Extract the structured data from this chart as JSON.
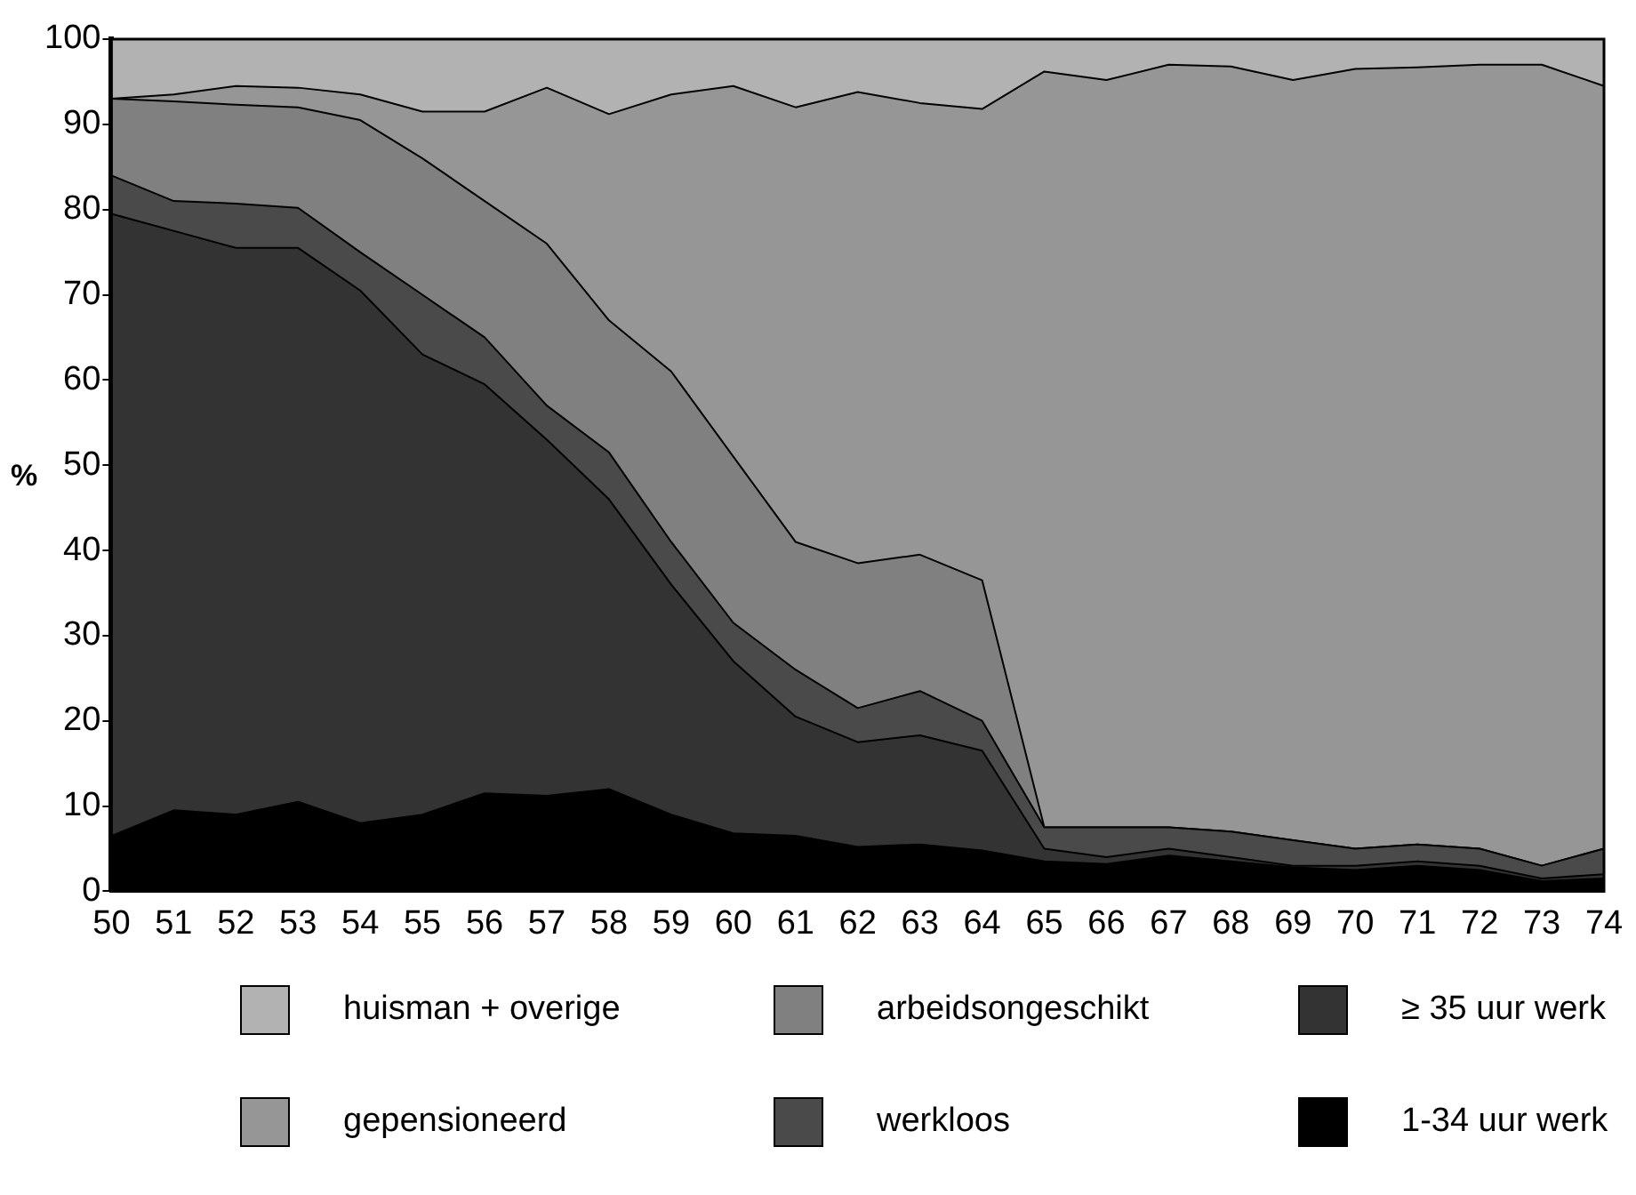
{
  "chart_data": {
    "type": "area",
    "stacked": true,
    "ylabel": "%",
    "categories": [
      "50",
      "51",
      "52",
      "53",
      "54",
      "55",
      "56",
      "57",
      "58",
      "59",
      "60",
      "61",
      "62",
      "63",
      "64",
      "65",
      "66",
      "67",
      "68",
      "69",
      "70",
      "71",
      "72",
      "73",
      "74"
    ],
    "ylim": [
      0,
      100
    ],
    "yticks": [
      0,
      10,
      20,
      30,
      40,
      50,
      60,
      70,
      80,
      90,
      100
    ],
    "grid": false,
    "legend": "bottom",
    "series": [
      {
        "name": "1-34 uur werk",
        "color": "#000000",
        "values": [
          6.5,
          9.5,
          9,
          10.5,
          8,
          9,
          11.5,
          11.2,
          12,
          9,
          6.8,
          6.5,
          5.2,
          5.5,
          4.8,
          3.5,
          3.2,
          4.2,
          3.5,
          2.8,
          2.5,
          3,
          2.5,
          1.2,
          1.5
        ]
      },
      {
        "name": "≥ 35 uur werk",
        "color": "#333333",
        "values": [
          73,
          68,
          66.5,
          65,
          62.5,
          54,
          48,
          41.8,
          34,
          27,
          20.2,
          14,
          12.3,
          12.8,
          11.7,
          1.5,
          0.8,
          0.8,
          0.5,
          0.2,
          0.5,
          0.5,
          0.5,
          0.3,
          0.5
        ]
      },
      {
        "name": "werkloos",
        "color": "#4a4a4a",
        "values": [
          4.5,
          3.5,
          5.2,
          4.7,
          4.5,
          7,
          5.5,
          4,
          5.5,
          5,
          4.5,
          5.5,
          4,
          5.2,
          3.5,
          2.5,
          3.5,
          2.5,
          3,
          3,
          2,
          2,
          2,
          1.5,
          3
        ]
      },
      {
        "name": "arbeidsongeschikt",
        "color": "#808080",
        "values": [
          9,
          11.7,
          11.6,
          11.8,
          15.5,
          16,
          16,
          19,
          15.5,
          20,
          19.5,
          15,
          17,
          16,
          16.5,
          0,
          0,
          0,
          0,
          0,
          0,
          0,
          0,
          0,
          0
        ]
      },
      {
        "name": "gepensioneerd",
        "color": "#969696",
        "values": [
          0,
          0.8,
          2.2,
          2.3,
          3,
          5.5,
          10.5,
          18.3,
          24.2,
          32.5,
          43.5,
          51,
          55.3,
          53,
          55.3,
          88.7,
          87.7,
          89.5,
          89.8,
          89.2,
          91.5,
          91.2,
          92,
          94,
          89.5
        ]
      },
      {
        "name": "huisman + overige",
        "color": "#b2b2b2",
        "values": [
          7,
          6.5,
          5.5,
          5.7,
          6.5,
          8.5,
          8.5,
          5.7,
          8.8,
          6.5,
          5.5,
          8,
          6.2,
          7.5,
          8.2,
          3.8,
          4.8,
          3,
          3.2,
          4.8,
          3.5,
          3.3,
          3,
          3,
          5.5
        ]
      }
    ]
  }
}
